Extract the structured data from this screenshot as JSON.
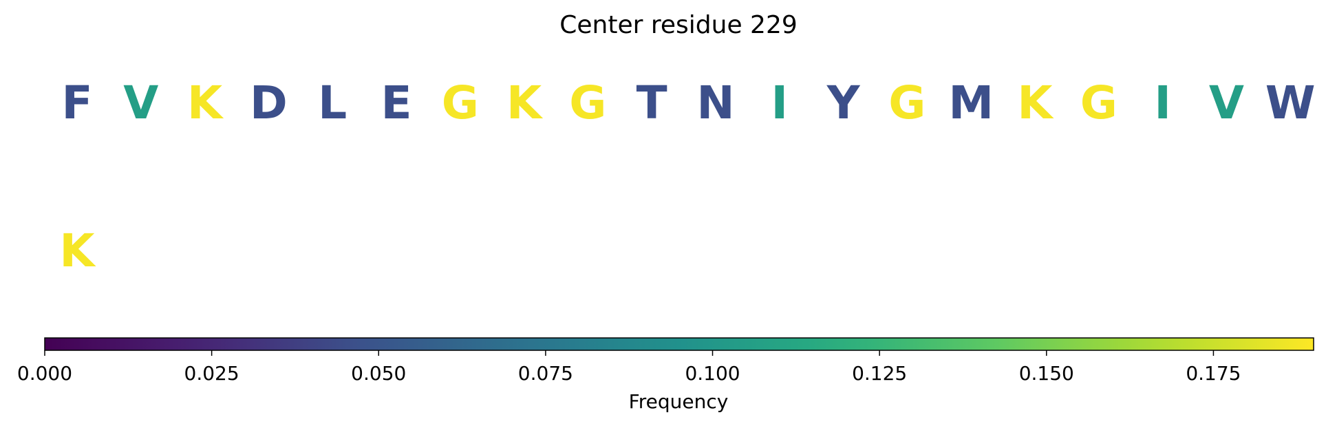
{
  "chart_data": {
    "type": "sequence-logo",
    "title": "Center residue 229",
    "colormap": "viridis",
    "color_range": [
      0.0,
      0.19
    ],
    "rows": [
      {
        "residues": [
          {
            "letter": "F",
            "frequency": 0.046
          },
          {
            "letter": "V",
            "frequency": 0.106
          },
          {
            "letter": "K",
            "frequency": 0.188
          },
          {
            "letter": "D",
            "frequency": 0.046
          },
          {
            "letter": "L",
            "frequency": 0.046
          },
          {
            "letter": "E",
            "frequency": 0.046
          },
          {
            "letter": "G",
            "frequency": 0.188
          },
          {
            "letter": "K",
            "frequency": 0.188
          },
          {
            "letter": "G",
            "frequency": 0.188
          },
          {
            "letter": "T",
            "frequency": 0.046
          },
          {
            "letter": "N",
            "frequency": 0.046
          },
          {
            "letter": "I",
            "frequency": 0.106
          },
          {
            "letter": "Y",
            "frequency": 0.046
          },
          {
            "letter": "G",
            "frequency": 0.188
          },
          {
            "letter": "M",
            "frequency": 0.046
          },
          {
            "letter": "K",
            "frequency": 0.188
          },
          {
            "letter": "G",
            "frequency": 0.188
          },
          {
            "letter": "I",
            "frequency": 0.106
          },
          {
            "letter": "V",
            "frequency": 0.106
          },
          {
            "letter": "W",
            "frequency": 0.046
          }
        ]
      },
      {
        "residues": [
          {
            "letter": "K",
            "frequency": 0.188
          }
        ]
      }
    ],
    "colorbar": {
      "label": "Frequency",
      "ticks": [
        0.0,
        0.025,
        0.05,
        0.075,
        0.1,
        0.125,
        0.15,
        0.175
      ],
      "tick_labels": [
        "0.000",
        "0.025",
        "0.050",
        "0.075",
        "0.100",
        "0.125",
        "0.150",
        "0.175"
      ]
    }
  }
}
